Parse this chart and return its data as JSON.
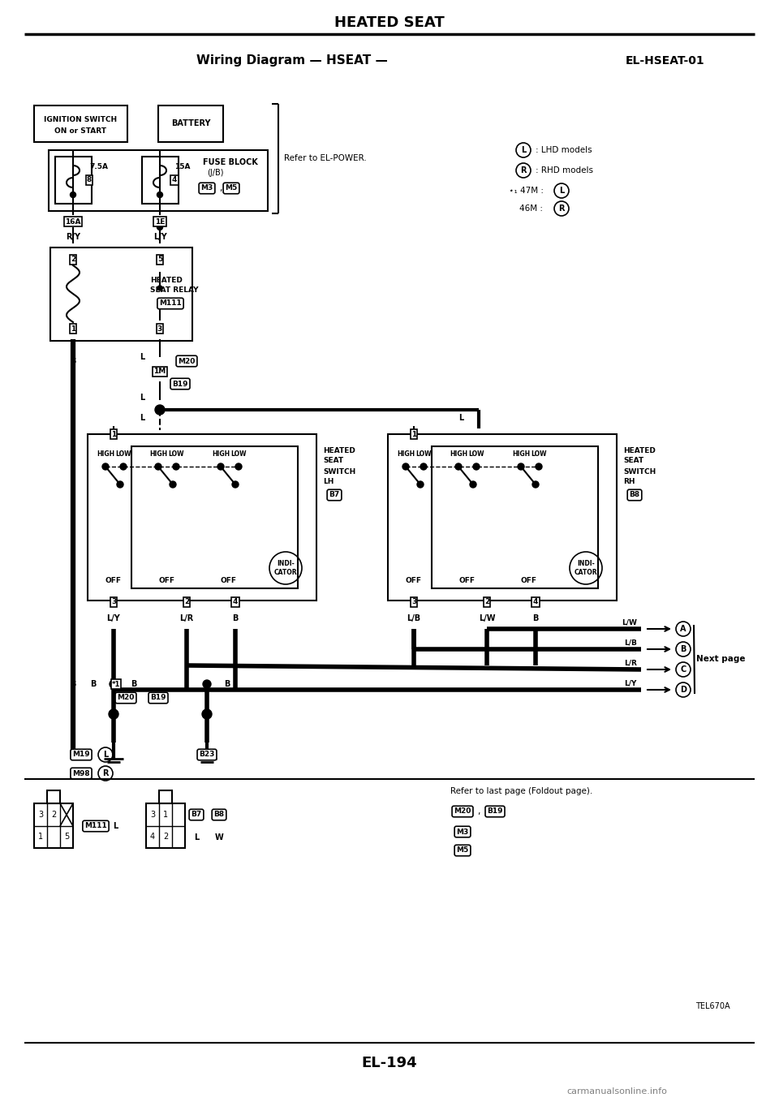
{
  "title": "HEATED SEAT",
  "subtitle": "Wiring Diagram — HSEAT —",
  "diagram_id": "EL-HSEAT-01",
  "page_num": "EL-194",
  "watermark": "carmanualsonline.info",
  "ref_text": "Refer to EL-POWER.",
  "ref_text2": "Refer to last page (Foldout page).",
  "bg_color": "#ffffff",
  "fig_width": 9.6,
  "fig_height": 13.58
}
